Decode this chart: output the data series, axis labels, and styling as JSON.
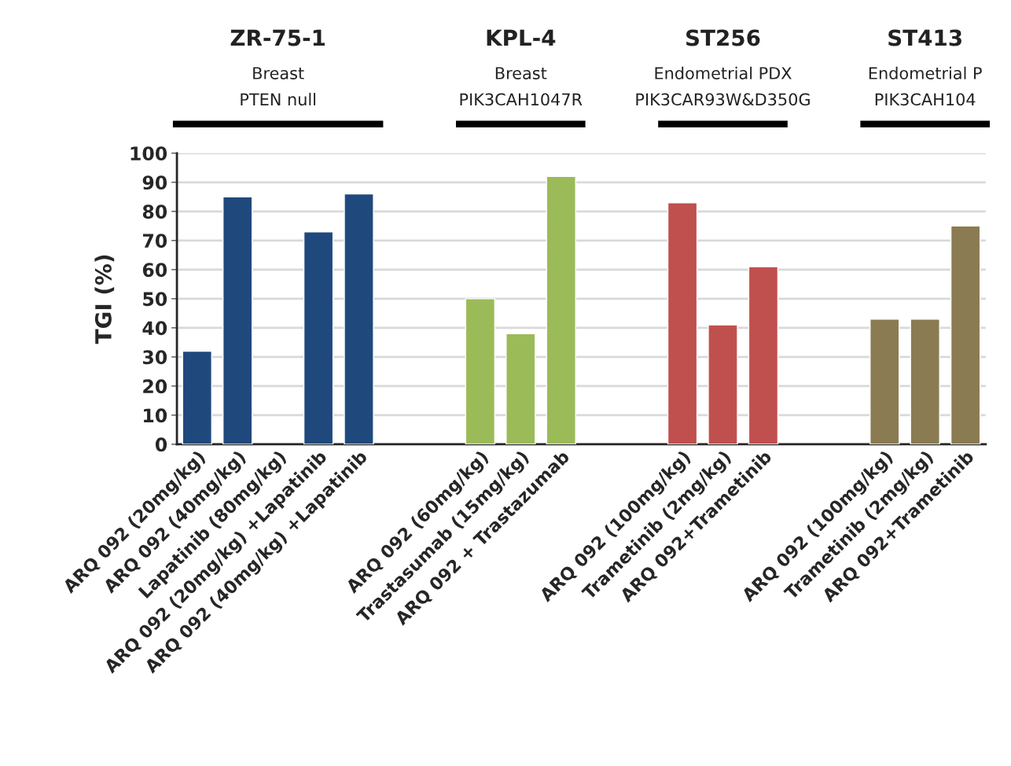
{
  "chart_data": {
    "type": "bar",
    "ylabel": "TGI (%)",
    "categories": [
      "ARQ 092 (20mg/kg)",
      "ARQ 092 (40mg/kg)",
      "Lapatinib (80mg/kg)",
      "ARQ 092 (20mg/kg) +Lapatinib",
      "ARQ 092 (40mg/kg) +Lapatinib",
      null,
      null,
      "ARQ 092 (60mg/kg)",
      "Trastasumab (15mg/kg)",
      "ARQ 092 + Trastazumab",
      null,
      null,
      "ARQ 092 (100mg/kg)",
      "Trametinib (2mg/kg)",
      "ARQ 092+Trametinib",
      null,
      null,
      "ARQ 092 (100mg/kg)",
      "Trametinib (2mg/kg)",
      "ARQ 092+Trametinib"
    ],
    "values": [
      32,
      85,
      null,
      73,
      86,
      null,
      null,
      50,
      38,
      92,
      null,
      null,
      83,
      41,
      61,
      null,
      null,
      43,
      43,
      75
    ],
    "colors": [
      "#1f497d",
      "#1f497d",
      "#1f497d",
      "#1f497d",
      "#1f497d",
      "#ffffff",
      "#ffffff",
      "#9bbb59",
      "#9bbb59",
      "#9bbb59",
      "#ffffff",
      "#ffffff",
      "#c0504d",
      "#c0504d",
      "#c0504d",
      "#ffffff",
      "#ffffff",
      "#8b7b52",
      "#8b7b52",
      "#8b7b52"
    ],
    "ylim": [
      0,
      100
    ],
    "yticks": [
      0,
      10,
      20,
      30,
      40,
      50,
      60,
      70,
      80,
      90,
      100
    ],
    "grid": "y",
    "annotations": [
      "ZR-75-1",
      "Breast",
      "PTEN null",
      "KPL-4",
      "Breast",
      "PIK3CAH1047R",
      "ST256",
      "Endometrial PDX",
      "PIK3CAR93W&D350G",
      "ST413",
      "Endometrial P",
      "PIK3CAH104"
    ]
  }
}
